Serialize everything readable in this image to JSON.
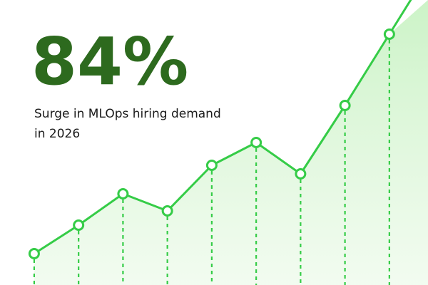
{
  "headline": "84%",
  "description": [
    "Surge in MLOps hiring demand",
    "in 2026"
  ],
  "chart_data": {
    "type": "line",
    "x": [
      1,
      2,
      3,
      4,
      5,
      6,
      7,
      8,
      9
    ],
    "values": [
      11,
      21,
      32,
      26,
      42,
      50,
      39,
      63,
      88
    ],
    "xlim": [
      0.23,
      9.87
    ],
    "ylim": [
      0,
      100
    ],
    "color": "#35cc47"
  }
}
